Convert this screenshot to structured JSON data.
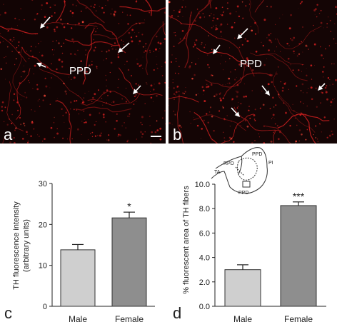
{
  "panels": {
    "a": {
      "letter": "a",
      "region": "PPD"
    },
    "b": {
      "letter": "b",
      "region": "PPD"
    },
    "c": {
      "letter": "c"
    },
    "d": {
      "letter": "d"
    }
  },
  "diagram": {
    "labels": [
      "TA",
      "RPD",
      "PPD",
      "PI",
      "PPD"
    ]
  },
  "colors": {
    "male_bar": "#cfcfcf",
    "female_bar": "#8e8e8e",
    "micrograph_bg": "#120404",
    "fiber": "#d42020"
  },
  "chart_data": [
    {
      "type": "bar",
      "panel": "c",
      "categories": [
        "Male",
        "Female"
      ],
      "values": [
        13.8,
        21.6
      ],
      "errors": [
        1.3,
        1.4
      ],
      "significance": [
        "",
        "*"
      ],
      "ylabel": "TH fluorescence intensity\n(arbitrary units)",
      "ylabel_lines": [
        "TH fluorescence intensity",
        "(arbitrary units)"
      ],
      "yticks": [
        "0",
        "10",
        "20",
        "30"
      ],
      "ylim": [
        0,
        30
      ]
    },
    {
      "type": "bar",
      "panel": "d",
      "categories": [
        "Male",
        "Female"
      ],
      "values": [
        3.0,
        8.25
      ],
      "errors": [
        0.4,
        0.3
      ],
      "significance": [
        "",
        "***"
      ],
      "ylabel": "% fluorescent area of TH fibers",
      "yticks": [
        "0.0",
        "2.0",
        "4.0",
        "6.0",
        "8.0",
        "10.0"
      ],
      "ylim": [
        0,
        10
      ]
    }
  ]
}
